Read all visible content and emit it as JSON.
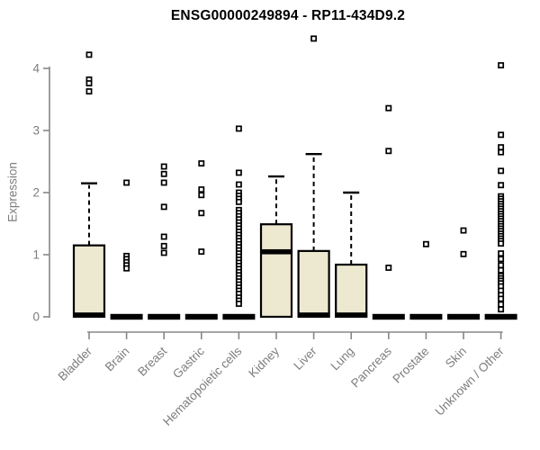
{
  "chart_data": {
    "type": "boxplot",
    "title": "ENSG00000249894 - RP11-434D9.2",
    "ylabel": "Expression",
    "xlabel": "",
    "ylim": [
      0,
      4
    ],
    "yticks": [
      0,
      1,
      2,
      3,
      4
    ],
    "grid": false,
    "legend": "none",
    "categories": [
      "Bladder",
      "Brain",
      "Breast",
      "Gastric",
      "Hematopoietic cells",
      "Kidney",
      "Liver",
      "Lung",
      "Pancreas",
      "Prostate",
      "Skin",
      "Unknown / Other"
    ],
    "boxes": [
      {
        "category": "Bladder",
        "q1": 0,
        "median": 0,
        "q3": 1.15,
        "whisker_low": 0,
        "whisker_high": 2.15,
        "outliers": [
          4.22,
          3.82,
          3.76,
          3.63
        ]
      },
      {
        "category": "Brain",
        "q1": 0,
        "median": 0,
        "q3": 0,
        "whisker_low": 0,
        "whisker_high": 0,
        "outliers": [
          2.16,
          0.98,
          0.93,
          0.88,
          0.83,
          0.78
        ]
      },
      {
        "category": "Breast",
        "q1": 0,
        "median": 0,
        "q3": 0,
        "whisker_low": 0,
        "whisker_high": 0,
        "outliers": [
          2.42,
          2.3,
          2.16,
          1.77,
          1.29,
          1.14,
          1.03
        ]
      },
      {
        "category": "Gastric",
        "q1": 0,
        "median": 0,
        "q3": 0,
        "whisker_low": 0,
        "whisker_high": 0,
        "outliers": [
          2.47,
          2.05,
          1.96,
          1.67,
          1.05
        ]
      },
      {
        "category": "Hematopoietic cells",
        "q1": 0,
        "median": 0,
        "q3": 0,
        "whisker_low": 0,
        "whisker_high": 0,
        "outliers": [
          3.03,
          2.32,
          2.13,
          2.0,
          1.95,
          1.9,
          1.85,
          1.72,
          1.67,
          1.62,
          1.57,
          1.52,
          1.47,
          1.42,
          1.37,
          1.32,
          1.27,
          1.22,
          1.17,
          1.12,
          1.07,
          1.02,
          0.97,
          0.92,
          0.87,
          0.82,
          0.77,
          0.72,
          0.67,
          0.62,
          0.57,
          0.52,
          0.47,
          0.42,
          0.37,
          0.31,
          0.26,
          0.21
        ]
      },
      {
        "category": "Kidney",
        "q1": 0,
        "median": 1.05,
        "q3": 1.49,
        "whisker_low": 0,
        "whisker_high": 2.26,
        "outliers": []
      },
      {
        "category": "Liver",
        "q1": 0,
        "median": 0,
        "q3": 1.06,
        "whisker_low": 0,
        "whisker_high": 2.62,
        "outliers": [
          4.48
        ]
      },
      {
        "category": "Lung",
        "q1": 0,
        "median": 0,
        "q3": 0.84,
        "whisker_low": 0,
        "whisker_high": 2.0,
        "outliers": []
      },
      {
        "category": "Pancreas",
        "q1": 0,
        "median": 0,
        "q3": 0,
        "whisker_low": 0,
        "whisker_high": 0,
        "outliers": [
          3.36,
          2.67,
          0.79
        ]
      },
      {
        "category": "Prostate",
        "q1": 0,
        "median": 0,
        "q3": 0,
        "whisker_low": 0,
        "whisker_high": 0,
        "outliers": [
          1.17
        ]
      },
      {
        "category": "Skin",
        "q1": 0,
        "median": 0,
        "q3": 0,
        "whisker_low": 0,
        "whisker_high": 0,
        "outliers": [
          1.39,
          1.01
        ]
      },
      {
        "category": "Unknown / Other",
        "q1": 0,
        "median": 0,
        "q3": 0,
        "whisker_low": 0,
        "whisker_high": 0,
        "outliers": [
          4.05,
          2.93,
          2.73,
          2.65,
          2.35,
          2.12,
          1.94,
          1.9,
          1.86,
          1.82,
          1.78,
          1.74,
          1.7,
          1.66,
          1.62,
          1.58,
          1.54,
          1.5,
          1.46,
          1.42,
          1.38,
          1.34,
          1.3,
          1.26,
          1.22,
          1.18,
          1.02,
          0.93,
          0.83,
          0.75,
          0.66,
          0.62,
          0.58,
          0.54,
          0.49,
          0.42,
          0.35,
          0.29,
          0.2,
          0.12
        ]
      }
    ],
    "colors": {
      "box_fill": "#EDE8D0",
      "box_border": "#000000",
      "median": "#000000",
      "whisker": "#000000",
      "outlier_stroke": "#000000",
      "axis_line": "#878787",
      "axis_text": "#7d7d7d",
      "title_text": "#000000",
      "background": "#ffffff"
    }
  }
}
